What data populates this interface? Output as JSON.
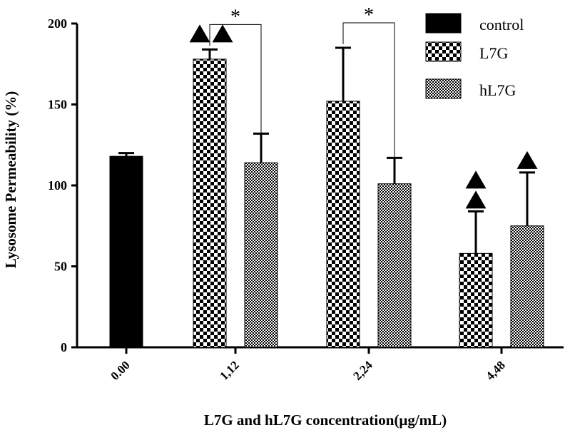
{
  "chart_data": {
    "type": "bar",
    "title": "",
    "xlabel": "L7G and hL7G concentration(μg/mL)",
    "ylabel": "Lysosome Permeability (%)",
    "ylim": [
      0,
      200
    ],
    "yticks": [
      0,
      50,
      100,
      150,
      200
    ],
    "categories": [
      "0.00",
      "1,12",
      "2,24",
      "4,48"
    ],
    "series": [
      {
        "name": "control",
        "pattern": "solid",
        "values": [
          118,
          null,
          null,
          null
        ],
        "errors": [
          2,
          null,
          null,
          null
        ]
      },
      {
        "name": "L7G",
        "pattern": "checker",
        "values": [
          null,
          178,
          152,
          58
        ],
        "errors": [
          null,
          6,
          33,
          26
        ]
      },
      {
        "name": "hL7G",
        "pattern": "fine-checker",
        "values": [
          null,
          114,
          101,
          75
        ],
        "errors": [
          null,
          18,
          16,
          33
        ]
      }
    ],
    "markers": [
      {
        "symbol": "▲▲",
        "series": "L7G",
        "category": "1,12",
        "layout": "horizontal"
      },
      {
        "symbol": "▲▲",
        "series": "L7G",
        "category": "4,48",
        "layout": "vertical"
      },
      {
        "symbol": "▲",
        "series": "hL7G",
        "category": "4,48",
        "layout": "single"
      }
    ],
    "significance": [
      {
        "label": "*",
        "category": "1,12",
        "between": [
          "L7G",
          "hL7G"
        ]
      },
      {
        "label": "*",
        "category": "2,24",
        "between": [
          "L7G",
          "hL7G"
        ]
      }
    ],
    "legend": {
      "position": "top-right",
      "entries": [
        {
          "label": "control",
          "pattern": "solid"
        },
        {
          "label": "L7G",
          "pattern": "checker"
        },
        {
          "label": "hL7G",
          "pattern": "fine-checker"
        }
      ]
    },
    "colors": {
      "bar": "#000000",
      "background": "#ffffff",
      "axis": "#000000"
    }
  }
}
